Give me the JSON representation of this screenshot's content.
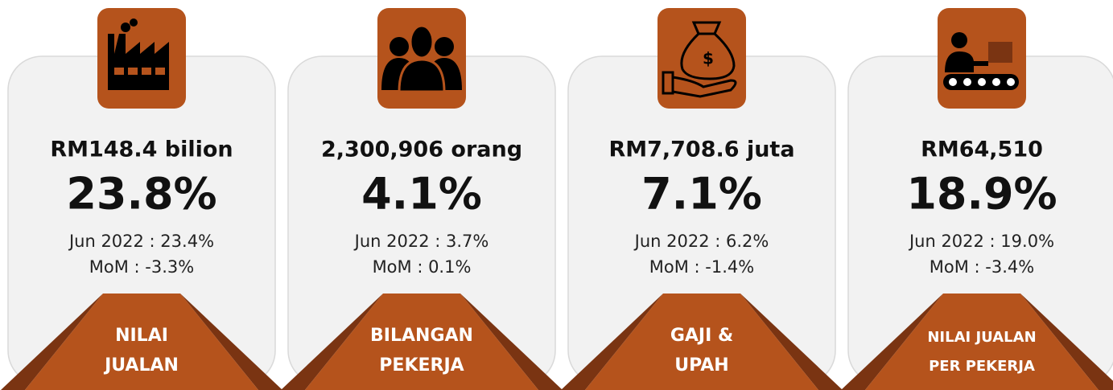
{
  "cards": [
    {
      "headline": "RM148.4 bilion",
      "percent": "23.8%",
      "line1": "Jun 2022 : 23.4%",
      "line2": "MoM : -3.3%",
      "label": [
        "NILAI",
        "JUALAN"
      ]
    },
    {
      "headline": "2,300,906 orang",
      "percent": "4.1%",
      "line1": "Jun 2022 : 3.7%",
      "line2": "MoM : 0.1%",
      "label": [
        "BILANGAN",
        "PEKERJA"
      ]
    },
    {
      "headline": "RM7,708.6 juta",
      "percent": "7.1%",
      "line1": "Jun 2022 : 6.2%",
      "line2": "MoM : -1.4%",
      "label": [
        "GAJI &",
        "UPAH"
      ]
    },
    {
      "headline": "RM64,510",
      "percent": "18.9%",
      "line1": "Jun 2022 : 19.0%",
      "line2": "MoM : -3.4%",
      "label": [
        "NILAI JUALAN",
        "PER PEKERJA"
      ]
    }
  ]
}
